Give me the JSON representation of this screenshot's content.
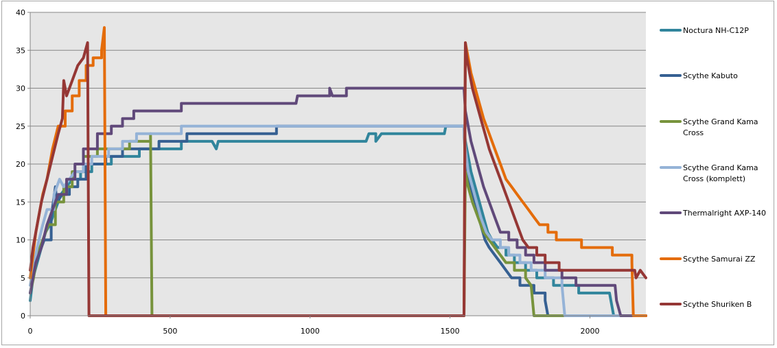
{
  "chart_data": {
    "type": "line",
    "title": "",
    "xlabel": "",
    "ylabel": "",
    "xlim": [
      0,
      2200
    ],
    "ylim": [
      0,
      40
    ],
    "x_ticks": [
      0,
      500,
      1000,
      1500,
      2000
    ],
    "y_ticks": [
      0,
      5,
      10,
      15,
      20,
      25,
      30,
      35,
      40
    ],
    "grid": "horizontal",
    "plot_background": "#e6e6e6",
    "legend_position": "right",
    "series": [
      {
        "name": "Noctura NH-C12P",
        "color": "#31859c",
        "points": [
          [
            0,
            2
          ],
          [
            10,
            5
          ],
          [
            25,
            7
          ],
          [
            40,
            9
          ],
          [
            55,
            11
          ],
          [
            70,
            12
          ],
          [
            90,
            14
          ],
          [
            110,
            16
          ],
          [
            130,
            17
          ],
          [
            150,
            18
          ],
          [
            180,
            19
          ],
          [
            220,
            20
          ],
          [
            290,
            21
          ],
          [
            390,
            22
          ],
          [
            540,
            23
          ],
          [
            650,
            23
          ],
          [
            665,
            22
          ],
          [
            672,
            23
          ],
          [
            1200,
            23
          ],
          [
            1210,
            24
          ],
          [
            1235,
            23
          ],
          [
            1255,
            24
          ],
          [
            1480,
            24
          ],
          [
            1485,
            25
          ],
          [
            1550,
            25
          ],
          [
            1555,
            23
          ],
          [
            1565,
            21
          ],
          [
            1575,
            19
          ],
          [
            1590,
            17
          ],
          [
            1605,
            15
          ],
          [
            1620,
            13
          ],
          [
            1635,
            11
          ],
          [
            1650,
            10
          ],
          [
            1670,
            9
          ],
          [
            1700,
            8
          ],
          [
            1730,
            7
          ],
          [
            1770,
            6
          ],
          [
            1810,
            5
          ],
          [
            1870,
            4
          ],
          [
            1960,
            3
          ],
          [
            2070,
            3
          ],
          [
            2075,
            2
          ],
          [
            2085,
            0
          ],
          [
            2200,
            0
          ]
        ]
      },
      {
        "name": "Scythe Kabuto",
        "color": "#366092",
        "points": [
          [
            0,
            3
          ],
          [
            15,
            6
          ],
          [
            30,
            8
          ],
          [
            50,
            10
          ],
          [
            75,
            13
          ],
          [
            90,
            17
          ],
          [
            95,
            15
          ],
          [
            115,
            16
          ],
          [
            140,
            17
          ],
          [
            170,
            18
          ],
          [
            200,
            20
          ],
          [
            270,
            21
          ],
          [
            330,
            22
          ],
          [
            460,
            23
          ],
          [
            560,
            24
          ],
          [
            780,
            24
          ],
          [
            880,
            25
          ],
          [
            1550,
            25
          ],
          [
            1555,
            20
          ],
          [
            1565,
            18
          ],
          [
            1580,
            16
          ],
          [
            1595,
            14
          ],
          [
            1610,
            12
          ],
          [
            1625,
            10
          ],
          [
            1640,
            9
          ],
          [
            1660,
            8
          ],
          [
            1680,
            7
          ],
          [
            1700,
            6
          ],
          [
            1720,
            5
          ],
          [
            1750,
            4
          ],
          [
            1800,
            3
          ],
          [
            1840,
            2
          ],
          [
            1850,
            0
          ],
          [
            2200,
            0
          ]
        ]
      },
      {
        "name": "Scythe Grand Kama Cross",
        "color": "#77933c",
        "points": [
          [
            0,
            3
          ],
          [
            12,
            5
          ],
          [
            25,
            8
          ],
          [
            45,
            10
          ],
          [
            65,
            12
          ],
          [
            90,
            15
          ],
          [
            120,
            17
          ],
          [
            150,
            19
          ],
          [
            190,
            21
          ],
          [
            240,
            22
          ],
          [
            355,
            23
          ],
          [
            430,
            24
          ],
          [
            435,
            0
          ],
          [
            1550,
            0
          ],
          [
            1555,
            19
          ],
          [
            1565,
            17
          ],
          [
            1580,
            15
          ],
          [
            1600,
            13
          ],
          [
            1620,
            11
          ],
          [
            1640,
            10
          ],
          [
            1660,
            9
          ],
          [
            1680,
            8
          ],
          [
            1700,
            7
          ],
          [
            1730,
            6
          ],
          [
            1770,
            5
          ],
          [
            1790,
            4
          ],
          [
            1800,
            0
          ],
          [
            2200,
            0
          ]
        ]
      },
      {
        "name": "Scythe Grand Kama Cross (komplett)",
        "color": "#95b3d7",
        "points": [
          [
            0,
            4
          ],
          [
            10,
            6
          ],
          [
            25,
            9
          ],
          [
            45,
            12
          ],
          [
            60,
            14
          ],
          [
            85,
            16
          ],
          [
            105,
            18
          ],
          [
            120,
            17
          ],
          [
            140,
            18
          ],
          [
            160,
            19
          ],
          [
            190,
            20
          ],
          [
            220,
            21
          ],
          [
            280,
            22
          ],
          [
            330,
            23
          ],
          [
            380,
            24
          ],
          [
            540,
            25
          ],
          [
            1550,
            25
          ],
          [
            1555,
            22
          ],
          [
            1565,
            19
          ],
          [
            1580,
            17
          ],
          [
            1595,
            15
          ],
          [
            1610,
            13
          ],
          [
            1630,
            11
          ],
          [
            1650,
            10
          ],
          [
            1680,
            9
          ],
          [
            1710,
            8
          ],
          [
            1750,
            7
          ],
          [
            1790,
            6
          ],
          [
            1840,
            5
          ],
          [
            1900,
            4
          ],
          [
            1910,
            0
          ],
          [
            2200,
            0
          ]
        ]
      },
      {
        "name": "Thermalright AXP-140",
        "color": "#60497a",
        "points": [
          [
            0,
            3
          ],
          [
            10,
            5
          ],
          [
            20,
            7
          ],
          [
            40,
            9
          ],
          [
            60,
            12
          ],
          [
            80,
            14
          ],
          [
            100,
            16
          ],
          [
            130,
            18
          ],
          [
            160,
            20
          ],
          [
            190,
            22
          ],
          [
            240,
            24
          ],
          [
            290,
            25
          ],
          [
            330,
            26
          ],
          [
            370,
            27
          ],
          [
            540,
            28
          ],
          [
            950,
            28
          ],
          [
            955,
            29
          ],
          [
            1070,
            30
          ],
          [
            1080,
            29
          ],
          [
            1130,
            30
          ],
          [
            1550,
            30
          ],
          [
            1555,
            27
          ],
          [
            1565,
            25
          ],
          [
            1575,
            23
          ],
          [
            1590,
            21
          ],
          [
            1605,
            19
          ],
          [
            1620,
            17
          ],
          [
            1640,
            15
          ],
          [
            1660,
            13
          ],
          [
            1680,
            11
          ],
          [
            1710,
            10
          ],
          [
            1740,
            9
          ],
          [
            1770,
            8
          ],
          [
            1800,
            7
          ],
          [
            1840,
            6
          ],
          [
            1900,
            5
          ],
          [
            1950,
            4
          ],
          [
            2090,
            4
          ],
          [
            2095,
            2
          ],
          [
            2110,
            0
          ],
          [
            2200,
            0
          ]
        ]
      },
      {
        "name": "Scythe Samurai ZZ",
        "color": "#e46c0a",
        "points": [
          [
            0,
            5
          ],
          [
            10,
            8
          ],
          [
            20,
            11
          ],
          [
            30,
            13
          ],
          [
            45,
            16
          ],
          [
            60,
            18
          ],
          [
            80,
            22
          ],
          [
            100,
            25
          ],
          [
            125,
            27
          ],
          [
            150,
            29
          ],
          [
            175,
            31
          ],
          [
            200,
            33
          ],
          [
            225,
            34
          ],
          [
            255,
            35
          ],
          [
            265,
            38
          ],
          [
            270,
            0
          ],
          [
            1550,
            0
          ],
          [
            1555,
            36
          ],
          [
            1565,
            34
          ],
          [
            1575,
            32
          ],
          [
            1590,
            30
          ],
          [
            1605,
            28
          ],
          [
            1620,
            26
          ],
          [
            1640,
            24
          ],
          [
            1660,
            22
          ],
          [
            1680,
            20
          ],
          [
            1700,
            18
          ],
          [
            1720,
            17
          ],
          [
            1740,
            16
          ],
          [
            1760,
            15
          ],
          [
            1780,
            14
          ],
          [
            1800,
            13
          ],
          [
            1820,
            12
          ],
          [
            1850,
            11
          ],
          [
            1880,
            10
          ],
          [
            1970,
            9
          ],
          [
            2080,
            8
          ],
          [
            2150,
            7
          ],
          [
            2155,
            0
          ],
          [
            2200,
            0
          ]
        ]
      },
      {
        "name": "Scythe Shuriken B",
        "color": "#953735",
        "points": [
          [
            0,
            6
          ],
          [
            10,
            9
          ],
          [
            25,
            12
          ],
          [
            40,
            15
          ],
          [
            60,
            18
          ],
          [
            80,
            21
          ],
          [
            100,
            24
          ],
          [
            115,
            26
          ],
          [
            120,
            31
          ],
          [
            130,
            29
          ],
          [
            150,
            31
          ],
          [
            170,
            33
          ],
          [
            190,
            34
          ],
          [
            205,
            36
          ],
          [
            210,
            0
          ],
          [
            1550,
            0
          ],
          [
            1555,
            36
          ],
          [
            1560,
            34
          ],
          [
            1570,
            32
          ],
          [
            1580,
            30
          ],
          [
            1595,
            28
          ],
          [
            1610,
            26
          ],
          [
            1625,
            24
          ],
          [
            1640,
            22
          ],
          [
            1660,
            20
          ],
          [
            1680,
            18
          ],
          [
            1700,
            16
          ],
          [
            1720,
            14
          ],
          [
            1740,
            12
          ],
          [
            1760,
            10
          ],
          [
            1780,
            9
          ],
          [
            1810,
            8
          ],
          [
            1840,
            7
          ],
          [
            1890,
            6
          ],
          [
            2160,
            6
          ],
          [
            2165,
            5
          ],
          [
            2180,
            6
          ],
          [
            2200,
            5
          ]
        ]
      }
    ]
  }
}
